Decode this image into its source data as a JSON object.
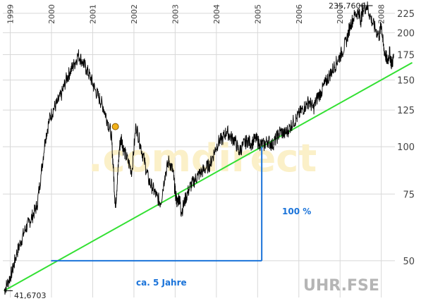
{
  "chart_data": {
    "type": "line",
    "symbol": "UHR.FSE",
    "watermark": ".comdirect",
    "yscale": "log",
    "ylim": [
      40,
      235.76
    ],
    "xlim": [
      1998.82,
      2008.33
    ],
    "y_ticks": [
      50,
      75,
      100,
      125,
      150,
      175,
      200,
      225
    ],
    "x_ticks": [
      "1999",
      "2000",
      "2001",
      "2002",
      "2003",
      "2004",
      "2005",
      "2006",
      "2007",
      "2008"
    ],
    "series": [
      {
        "x": [
          1998.85,
          1998.95,
          1999.05,
          1999.15,
          1999.25,
          1999.35,
          1999.45,
          1999.55,
          1999.65,
          1999.75,
          1999.85,
          1999.95,
          2000.05,
          2000.15,
          2000.25,
          2000.35,
          2000.45,
          2000.55,
          2000.65,
          2000.75,
          2000.85,
          2000.95,
          2001.05,
          2001.15,
          2001.25,
          2001.35,
          2001.45,
          2001.5,
          2001.55,
          2001.6,
          2001.65,
          2001.7,
          2001.75,
          2001.85,
          2001.95,
          2002.05,
          2002.15,
          2002.25,
          2002.35,
          2002.45,
          2002.55,
          2002.65,
          2002.75,
          2002.85,
          2002.95,
          2003.0,
          2003.05,
          2003.1,
          2003.15,
          2003.25,
          2003.35,
          2003.45,
          2003.55,
          2003.65,
          2003.75,
          2003.85,
          2003.95,
          2004.05,
          2004.15,
          2004.25,
          2004.35,
          2004.45,
          2004.55,
          2004.65,
          2004.75,
          2004.85,
          2004.95,
          2005.05,
          2005.15,
          2005.25,
          2005.35,
          2005.45,
          2005.55,
          2005.65,
          2005.75,
          2005.85,
          2005.95,
          2006.05,
          2006.15,
          2006.25,
          2006.35,
          2006.45,
          2006.55,
          2006.65,
          2006.75,
          2006.85,
          2006.95,
          2007.05,
          2007.15,
          2007.25,
          2007.35,
          2007.45,
          2007.5,
          2007.55,
          2007.65,
          2007.75,
          2007.85,
          2007.95,
          2008.0,
          2008.05,
          2008.1,
          2008.15,
          2008.2,
          2008.25,
          2008.3
        ],
        "values": [
          41.67,
          44,
          47,
          52,
          56,
          60,
          63,
          66,
          70,
          85,
          105,
          118,
          126,
          131,
          138,
          150,
          158,
          165,
          175,
          168,
          160,
          152,
          142,
          135,
          128,
          118,
          108,
          88,
          69,
          82,
          100,
          106,
          98,
          92,
          86,
          114,
          102,
          92,
          82,
          78,
          74,
          71,
          84,
          92,
          86,
          76,
          71,
          74,
          67,
          73,
          78,
          81,
          84,
          86,
          88,
          90,
          97,
          103,
          105,
          110,
          106,
          104,
          97,
          101,
          104,
          102,
          105,
          102,
          101,
          104,
          101,
          105,
          110,
          108,
          111,
          116,
          119,
          124,
          128,
          132,
          126,
          135,
          140,
          148,
          155,
          162,
          170,
          178,
          190,
          210,
          222,
          228,
          215,
          230,
          235.76,
          218,
          205,
          196,
          212,
          184,
          175,
          168,
          178,
          165,
          172
        ]
      }
    ],
    "annotations": {
      "max_label": "235,7600",
      "min_label": "41,6703",
      "percent_label": "100 %",
      "years_label": "ca. 5 Jahre"
    },
    "colors": {
      "price": "#000000",
      "trend": "#33e033",
      "measure": "#1a73d9",
      "grid": "#d8d8d8"
    }
  }
}
